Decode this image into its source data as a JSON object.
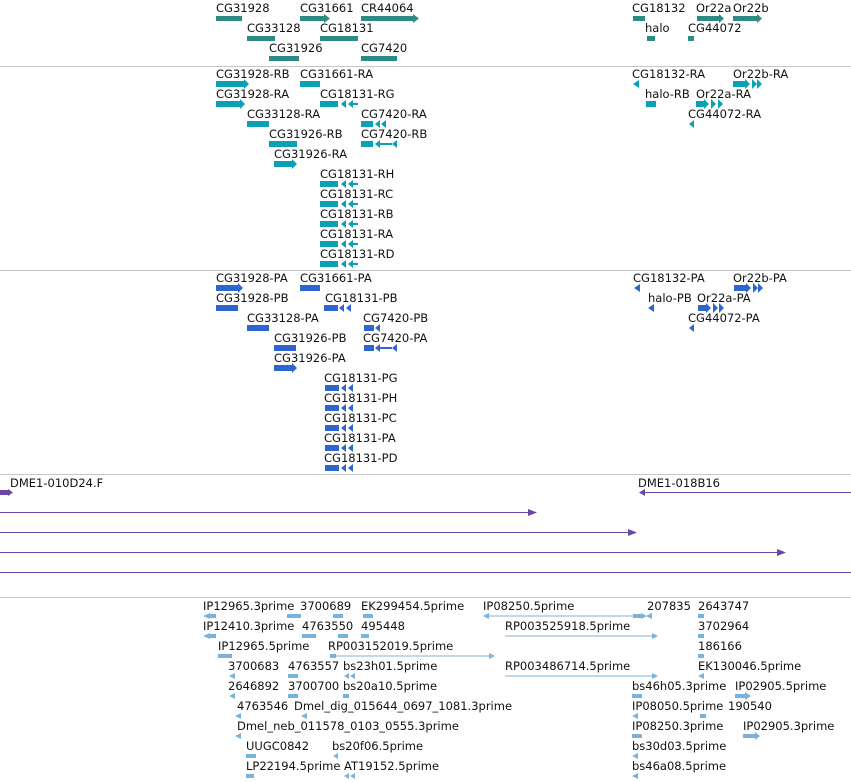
{
  "colors": {
    "gene": "#2e8b84",
    "transcript": "#0aa0b5",
    "protein": "#2c67d0",
    "bac": "#6a46a6",
    "est": "#79b3dd",
    "separator": "#c6c6c6"
  },
  "tracks": {
    "genes": [
      {
        "id": "CG31928",
        "label": "CG31928"
      },
      {
        "id": "CG31661",
        "label": "CG31661"
      },
      {
        "id": "CR44064",
        "label": "CR44064"
      },
      {
        "id": "CG33128",
        "label": "CG33128"
      },
      {
        "id": "CG18131",
        "label": "CG18131"
      },
      {
        "id": "CG31926",
        "label": "CG31926"
      },
      {
        "id": "CG7420",
        "label": "CG7420"
      },
      {
        "id": "CG18132",
        "label": "CG18132"
      },
      {
        "id": "Or22a",
        "label": "Or22a"
      },
      {
        "id": "Or22b",
        "label": "Or22b"
      },
      {
        "id": "halo",
        "label": "halo"
      },
      {
        "id": "CG44072",
        "label": "CG44072"
      }
    ],
    "transcripts": [
      {
        "label": "CG31928-RB"
      },
      {
        "label": "CG31661-RA"
      },
      {
        "label": "CG31928-RA"
      },
      {
        "label": "CG18131-RG"
      },
      {
        "label": "CG33128-RA"
      },
      {
        "label": "CG7420-RA"
      },
      {
        "label": "CG31926-RB"
      },
      {
        "label": "CG7420-RB"
      },
      {
        "label": "CG31926-RA"
      },
      {
        "label": "CG18131-RH"
      },
      {
        "label": "CG18131-RC"
      },
      {
        "label": "CG18131-RB"
      },
      {
        "label": "CG18131-RA"
      },
      {
        "label": "CG18131-RD"
      },
      {
        "label": "CG18132-RA"
      },
      {
        "label": "Or22b-RA"
      },
      {
        "label": "halo-RB"
      },
      {
        "label": "Or22a-RA"
      },
      {
        "label": "CG44072-RA"
      }
    ],
    "proteins": [
      {
        "label": "CG31928-PA"
      },
      {
        "label": "CG31661-PA"
      },
      {
        "label": "CG31928-PB"
      },
      {
        "label": "CG18131-PB"
      },
      {
        "label": "CG33128-PA"
      },
      {
        "label": "CG7420-PB"
      },
      {
        "label": "CG31926-PB"
      },
      {
        "label": "CG7420-PA"
      },
      {
        "label": "CG31926-PA"
      },
      {
        "label": "CG18131-PG"
      },
      {
        "label": "CG18131-PH"
      },
      {
        "label": "CG18131-PC"
      },
      {
        "label": "CG18131-PA"
      },
      {
        "label": "CG18131-PD"
      },
      {
        "label": "CG18132-PA"
      },
      {
        "label": "Or22b-PA"
      },
      {
        "label": "halo-PB"
      },
      {
        "label": "Or22a-PA"
      },
      {
        "label": "CG44072-PA"
      }
    ],
    "bac_clones": [
      {
        "label": "DME1-010D24.F"
      },
      {
        "label": "DME1-018B16"
      }
    ],
    "est_alignments": [
      {
        "label": "IP12965.3prime"
      },
      {
        "label": "3700689"
      },
      {
        "label": "EK299454.5prime"
      },
      {
        "label": "IP08250.5prime"
      },
      {
        "label": "207835"
      },
      {
        "label": "2643747"
      },
      {
        "label": "IP12410.3prime"
      },
      {
        "label": "4763550"
      },
      {
        "label": "495448"
      },
      {
        "label": "RP003525918.5prime"
      },
      {
        "label": "3702964"
      },
      {
        "label": "IP12965.5prime"
      },
      {
        "label": "RP003152019.5prime"
      },
      {
        "label": "186166"
      },
      {
        "label": "3700683"
      },
      {
        "label": "4763557"
      },
      {
        "label": "bs23h01.5prime"
      },
      {
        "label": "RP003486714.5prime"
      },
      {
        "label": "EK130046.5prime"
      },
      {
        "label": "2646892"
      },
      {
        "label": "3700700"
      },
      {
        "label": "bs20a10.5prime"
      },
      {
        "label": "bs46h05.3prime"
      },
      {
        "label": "IP02905.5prime"
      },
      {
        "label": "4763546"
      },
      {
        "label": "Dmel_dig_015644_0697_1081.3prime"
      },
      {
        "label": "IP08050.5prime"
      },
      {
        "label": "190540"
      },
      {
        "label": "Dmel_neb_011578_0103_0555.3prime"
      },
      {
        "label": "IP08250.3prime"
      },
      {
        "label": "IP02905.3prime"
      },
      {
        "label": "UUGC0842"
      },
      {
        "label": "bs20f06.5prime"
      },
      {
        "label": "bs30d03.5prime"
      },
      {
        "label": "LP22194.5prime"
      },
      {
        "label": "AT19152.5prime"
      },
      {
        "label": "bs46a08.5prime"
      }
    ]
  }
}
